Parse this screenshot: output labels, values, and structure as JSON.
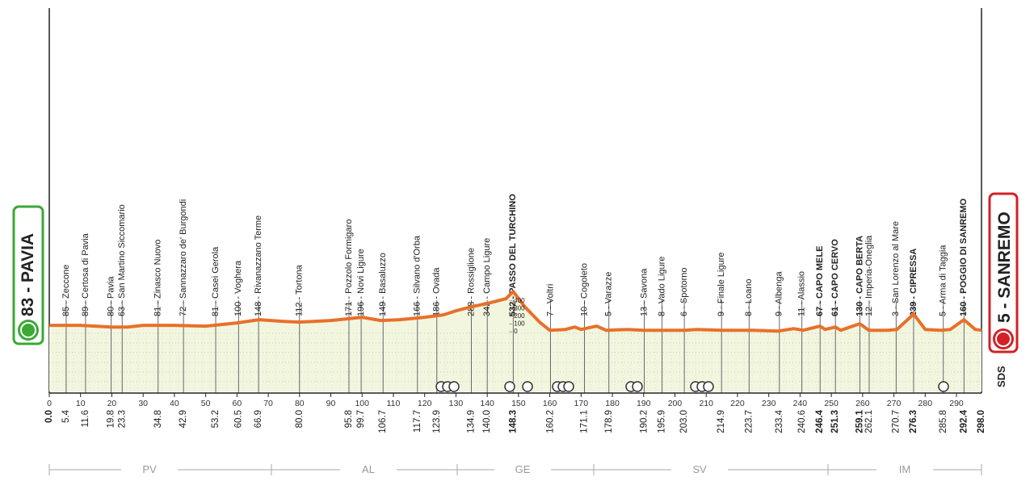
{
  "chart_data": {
    "type": "area",
    "color": "#e8702a",
    "fill": "#f3f6df",
    "xlim": [
      0,
      298
    ],
    "xticks": [
      0,
      10,
      20,
      30,
      40,
      50,
      60,
      70,
      80,
      90,
      100,
      110,
      120,
      130,
      140,
      150,
      160,
      170,
      180,
      190,
      200,
      210,
      220,
      230,
      240,
      250,
      260,
      270,
      280,
      290
    ],
    "ylim": [
      -770,
      4180
    ],
    "yticks": [
      0,
      100,
      200,
      300,
      400
    ],
    "x": [
      0,
      10,
      20,
      25,
      30,
      40,
      50,
      60,
      67,
      75,
      80,
      90,
      100,
      106,
      112,
      120,
      126,
      130,
      135,
      141,
      146,
      148.3,
      152,
      157,
      160,
      165,
      168,
      170,
      175,
      178,
      185,
      190,
      195,
      203,
      207,
      215,
      225,
      233,
      238,
      241,
      246.4,
      248,
      251.3,
      253,
      259.1,
      262,
      268,
      271,
      276.3,
      280,
      285,
      288,
      292.4,
      296,
      298
    ],
    "values": [
      83,
      83,
      62,
      62,
      83,
      83,
      73,
      115,
      156,
      135,
      125,
      146,
      188,
      146,
      156,
      188,
      219,
      271,
      323,
      375,
      427,
      520,
      323,
      115,
      20,
      30,
      62,
      30,
      73,
      20,
      30,
      20,
      20,
      20,
      30,
      20,
      20,
      10,
      41,
      20,
      73,
      30,
      62,
      20,
      104,
      20,
      20,
      30,
      229,
      30,
      20,
      30,
      156,
      30,
      20
    ],
    "start": {
      "name": "83 - PAVIA",
      "km": 0,
      "km_label": "0.0"
    },
    "finish": {
      "name": "5 - SANREMO",
      "km": 298,
      "km_label": "298.0"
    },
    "waypoints": [
      {
        "name": "85 - Zeccone",
        "km": 5.4
      },
      {
        "name": "89 - Certosa di Pavia",
        "km": 11.6
      },
      {
        "name": "80 - Pavia",
        "km": 19.8
      },
      {
        "name": "63 - San Martino Siccomario",
        "km": 23.3
      },
      {
        "name": "81 - Zinasco Nuovo",
        "km": 34.8
      },
      {
        "name": "72 - Sannazzaro de' Burgondi",
        "km": 42.9
      },
      {
        "name": "81 - Casei Gerola",
        "km": 53.2
      },
      {
        "name": "100 - Voghera",
        "km": 60.5
      },
      {
        "name": "148 - Rivanazzano Terme",
        "km": 66.9
      },
      {
        "name": "112 - Tortona",
        "km": 80,
        "km_label": "80.0"
      },
      {
        "name": "171 - Pozzolo Formigaro",
        "km": 95.8
      },
      {
        "name": "196 - Novi Ligure",
        "km": 99.7
      },
      {
        "name": "149 - Basaluzzo",
        "km": 106.7
      },
      {
        "name": "166 - Silvano d'Orba",
        "km": 117.7
      },
      {
        "name": "186 - Ovada",
        "km": 123.9
      },
      {
        "name": "288 - Rossiglione",
        "km": 134.9
      },
      {
        "name": "342 - Campo Ligure",
        "km": 140,
        "km_label": "140.0"
      },
      {
        "name": "532 - PASSO DEL TURCHINO",
        "km": 148.3,
        "climb": true
      },
      {
        "name": "7 - Voltri",
        "km": 160.2
      },
      {
        "name": "10 - Cogoleto",
        "km": 171.1
      },
      {
        "name": "5 - Varazze",
        "km": 178.9
      },
      {
        "name": "13 - Savona",
        "km": 190.2
      },
      {
        "name": "8 - Vado Ligure",
        "km": 195.9
      },
      {
        "name": "6 - Spotorno",
        "km": 203,
        "km_label": "203.0"
      },
      {
        "name": "9 - Finale Ligure",
        "km": 214.9
      },
      {
        "name": "8 - Loano",
        "km": 223.7
      },
      {
        "name": "9 - Albenga",
        "km": 233.4
      },
      {
        "name": "11 - Alassio",
        "km": 240.6
      },
      {
        "name": "67 - CAPO MELE",
        "km": 246.4,
        "climb": true
      },
      {
        "name": "61 - CAPO CERVO",
        "km": 251.3,
        "climb": true
      },
      {
        "name": "130 - CAPO BERTA",
        "km": 259.1,
        "climb": true
      },
      {
        "name": "12 - Imperia-Oneglia",
        "km": 262.1
      },
      {
        "name": "3 - San Lorenzo al Mare",
        "km": 270.7
      },
      {
        "name": "239 - CIPRESSA",
        "km": 276.3,
        "climb": true
      },
      {
        "name": "5 - Arma di Taggia",
        "km": 285.8
      },
      {
        "name": "160 - POGGIO DI SANREMO",
        "km": 292.4,
        "climb": true
      }
    ],
    "provinces": [
      "PV",
      "AL",
      "GE",
      "SV",
      "IM"
    ],
    "brand": "SDS"
  }
}
